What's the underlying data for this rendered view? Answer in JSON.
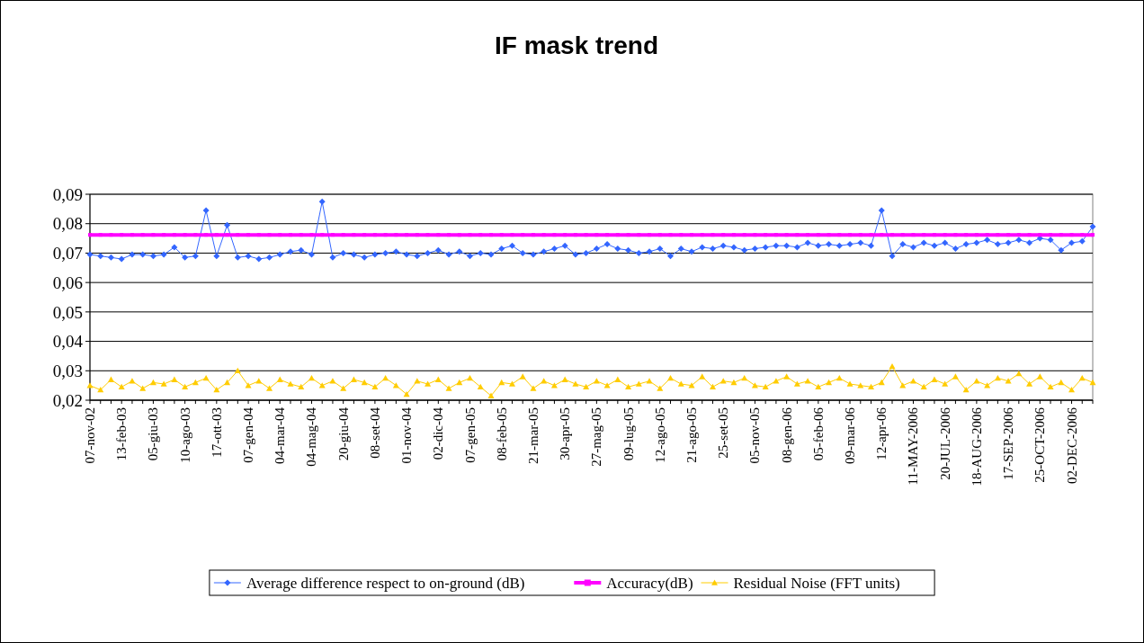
{
  "chart_data": {
    "type": "line",
    "title": "IF mask trend",
    "categories": [
      "07-nov-02",
      null,
      null,
      "13-feb-03",
      null,
      null,
      "05-giu-03",
      null,
      null,
      "10-ago-03",
      null,
      null,
      "17-ott-03",
      null,
      null,
      "07-gen-04",
      null,
      null,
      "04-mar-04",
      null,
      null,
      "04-mag-04",
      null,
      null,
      "20-giu-04",
      null,
      null,
      "08-set-04",
      null,
      null,
      "01-nov-04",
      null,
      null,
      "02-dic-04",
      null,
      null,
      "07-gen-05",
      null,
      null,
      "08-feb-05",
      null,
      null,
      "21-mar-05",
      null,
      null,
      "30-apr-05",
      null,
      null,
      "27-mag-05",
      null,
      null,
      "09-lug-05",
      null,
      null,
      "12-ago-05",
      null,
      null,
      "21-ago-05",
      null,
      null,
      "25-set-05",
      null,
      null,
      "05-nov-05",
      null,
      null,
      "08-gen-06",
      null,
      null,
      "05-feb-06",
      null,
      null,
      "09-mar-06",
      null,
      null,
      "12-apr-06",
      null,
      null,
      "11-MAY-2006",
      null,
      null,
      "20-JUL-2006",
      null,
      null,
      "18-AUG-2006",
      null,
      null,
      "17-SEP-2006",
      null,
      null,
      "25-OCT-2006",
      null,
      null,
      "02-DEC-2006",
      null,
      null
    ],
    "series": [
      {
        "name": "Average difference respect to on-ground (dB)",
        "color": "#3366ff",
        "marker": "diamond",
        "values": [
          0.0695,
          0.069,
          0.0685,
          0.068,
          0.0695,
          0.0695,
          0.069,
          0.0695,
          0.072,
          0.0685,
          0.069,
          0.0845,
          0.069,
          0.0795,
          0.0685,
          0.069,
          0.068,
          0.0685,
          0.0695,
          0.0705,
          0.071,
          0.0695,
          0.0875,
          0.0685,
          0.07,
          0.0695,
          0.0685,
          0.0695,
          0.07,
          0.0705,
          0.0695,
          0.069,
          0.07,
          0.071,
          0.0695,
          0.0705,
          0.069,
          0.07,
          0.0695,
          0.0715,
          0.0725,
          0.07,
          0.0695,
          0.0705,
          0.0715,
          0.0725,
          0.0695,
          0.07,
          0.0715,
          0.073,
          0.0715,
          0.071,
          0.07,
          0.0705,
          0.0715,
          0.069,
          0.0715,
          0.0705,
          0.072,
          0.0715,
          0.0725,
          0.072,
          0.071,
          0.0715,
          0.072,
          0.0725,
          0.0725,
          0.072,
          0.0735,
          0.0725,
          0.073,
          0.0725,
          0.073,
          0.0735,
          0.0725,
          0.0845,
          0.069,
          0.073,
          0.072,
          0.0735,
          0.0725,
          0.0735,
          0.0715,
          0.073,
          0.0735,
          0.0745,
          0.073,
          0.0735,
          0.0745,
          0.0735,
          0.075,
          0.0745,
          0.071,
          0.0735,
          0.074,
          0.079
        ]
      },
      {
        "name": "Accuracy(dB)",
        "color": "#ff00ff",
        "marker": "square",
        "values": [
          0.0762,
          0.0762,
          0.0762,
          0.0762,
          0.0762,
          0.0762,
          0.0762,
          0.0762,
          0.0762,
          0.0762,
          0.0762,
          0.0762,
          0.0762,
          0.0762,
          0.0762,
          0.0762,
          0.0762,
          0.0762,
          0.0762,
          0.0762,
          0.0762,
          0.0762,
          0.0762,
          0.0762,
          0.0762,
          0.0762,
          0.0762,
          0.0762,
          0.0762,
          0.0762,
          0.0762,
          0.0762,
          0.0762,
          0.0762,
          0.0762,
          0.0762,
          0.0762,
          0.0762,
          0.0762,
          0.0762,
          0.0762,
          0.0762,
          0.0762,
          0.0762,
          0.0762,
          0.0762,
          0.0762,
          0.0762,
          0.0762,
          0.0762,
          0.0762,
          0.0762,
          0.0762,
          0.0762,
          0.0762,
          0.0762,
          0.0762,
          0.0762,
          0.0762,
          0.0762,
          0.0762,
          0.0762,
          0.0762,
          0.0762,
          0.0762,
          0.0762,
          0.0762,
          0.0762,
          0.0762,
          0.0762,
          0.0762,
          0.0762,
          0.0762,
          0.0762,
          0.0762,
          0.0762,
          0.0762,
          0.0762,
          0.0762,
          0.0762,
          0.0762,
          0.0762,
          0.0762,
          0.0762,
          0.0762,
          0.0762,
          0.0762,
          0.0762,
          0.0762,
          0.0762,
          0.0762,
          0.0762,
          0.0762,
          0.0762,
          0.0762,
          0.0762
        ]
      },
      {
        "name": "Residual Noise (FFT units)",
        "color": "#ffcc00",
        "marker": "triangle",
        "values": [
          0.025,
          0.0235,
          0.027,
          0.0245,
          0.0265,
          0.024,
          0.026,
          0.0255,
          0.027,
          0.0245,
          0.026,
          0.0275,
          0.0235,
          0.026,
          0.03,
          0.025,
          0.0265,
          0.024,
          0.027,
          0.0255,
          0.0245,
          0.0275,
          0.025,
          0.0265,
          0.024,
          0.027,
          0.026,
          0.0245,
          0.0275,
          0.025,
          0.022,
          0.0265,
          0.0255,
          0.027,
          0.024,
          0.026,
          0.0275,
          0.0245,
          0.0215,
          0.026,
          0.0255,
          0.028,
          0.024,
          0.0265,
          0.025,
          0.027,
          0.0255,
          0.0245,
          0.0265,
          0.025,
          0.027,
          0.0245,
          0.0255,
          0.0265,
          0.024,
          0.0275,
          0.0255,
          0.025,
          0.028,
          0.0245,
          0.0265,
          0.026,
          0.0275,
          0.025,
          0.0245,
          0.0265,
          0.028,
          0.0255,
          0.0265,
          0.0245,
          0.026,
          0.0275,
          0.0255,
          0.025,
          0.0245,
          0.026,
          0.0315,
          0.025,
          0.0265,
          0.0245,
          0.027,
          0.0255,
          0.028,
          0.0235,
          0.0265,
          0.025,
          0.0275,
          0.0265,
          0.029,
          0.0255,
          0.028,
          0.0245,
          0.026,
          0.0235,
          0.0275,
          0.026
        ]
      }
    ],
    "ylim": [
      0.02,
      0.09
    ],
    "yticks": [
      {
        "value": 0.02,
        "label": "0,02"
      },
      {
        "value": 0.03,
        "label": "0,03"
      },
      {
        "value": 0.04,
        "label": "0,04"
      },
      {
        "value": 0.05,
        "label": "0,05"
      },
      {
        "value": 0.06,
        "label": "0,06"
      },
      {
        "value": 0.07,
        "label": "0,07"
      },
      {
        "value": 0.08,
        "label": "0,08"
      },
      {
        "value": 0.09,
        "label": "0,09"
      }
    ],
    "grid": "y",
    "legend": "bottom",
    "line_style": "solid"
  }
}
